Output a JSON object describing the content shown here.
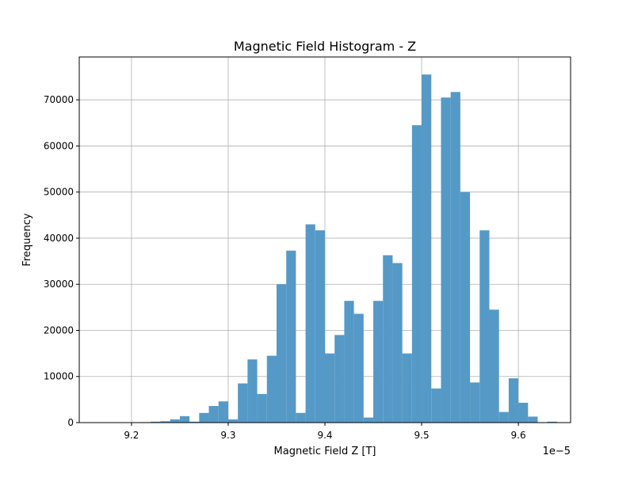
{
  "chart_data": {
    "type": "bar",
    "title": "Magnetic Field Histogram - Z",
    "xlabel": "Magnetic Field Z [T]",
    "ylabel": "Frequency",
    "x_offset_text": "1e−5",
    "x_scale_factor": 1e-05,
    "xlim": [
      9.146,
      9.654
    ],
    "ylim": [
      0,
      79300
    ],
    "grid": true,
    "bar_color": "#5599c7",
    "xticks": [
      9.2,
      9.3,
      9.4,
      9.5,
      9.6
    ],
    "xtick_labels": [
      "9.2",
      "9.3",
      "9.4",
      "9.5",
      "9.6"
    ],
    "yticks": [
      0,
      10000,
      20000,
      30000,
      40000,
      50000,
      60000,
      70000
    ],
    "ytick_labels": [
      "0",
      "10000",
      "20000",
      "30000",
      "40000",
      "50000",
      "60000",
      "70000"
    ],
    "bins": {
      "start": 9.16,
      "width": 0.01,
      "counts": [
        0,
        0,
        0,
        0,
        0,
        100,
        200,
        300,
        700,
        1400,
        200,
        2100,
        3600,
        4600,
        700,
        8500,
        13700,
        6200,
        14500,
        30000,
        37300,
        2100,
        43000,
        41700,
        15000,
        19000,
        26400,
        23600,
        1100,
        26400,
        36300,
        34600,
        15000,
        64500,
        75500,
        7400,
        70500,
        71700,
        50000,
        8700,
        41700,
        24500,
        2300,
        9600,
        4300,
        1300,
        0,
        200,
        0
      ]
    }
  }
}
